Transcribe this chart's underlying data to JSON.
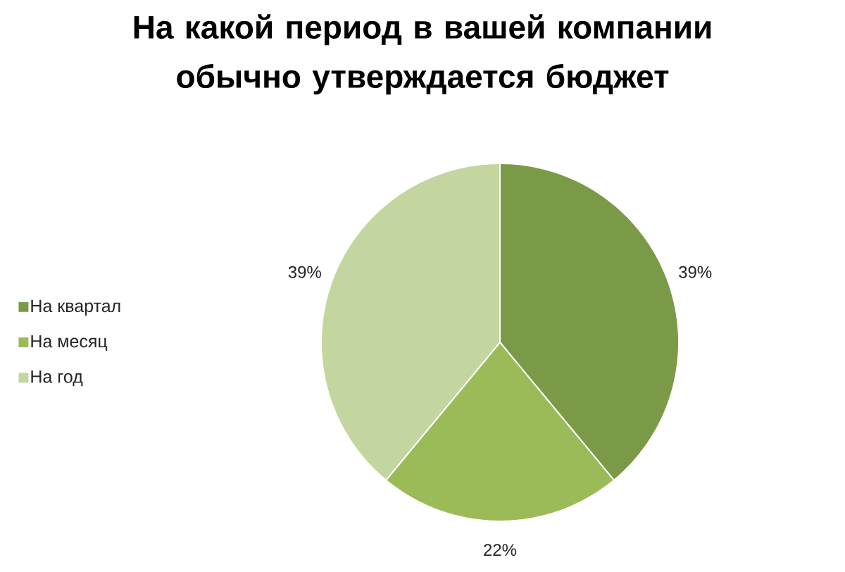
{
  "chart_data": {
    "type": "pie",
    "title": "На какой период в вашей компании обычно утверждается бюджет",
    "categories": [
      "На квартал",
      "На месяц",
      "На год"
    ],
    "values": [
      39,
      22,
      39
    ],
    "colors": [
      "#7a9a48",
      "#9bbb59",
      "#c4d6a0"
    ],
    "value_labels": [
      "39%",
      "22%",
      "39%"
    ],
    "legend": "left"
  }
}
